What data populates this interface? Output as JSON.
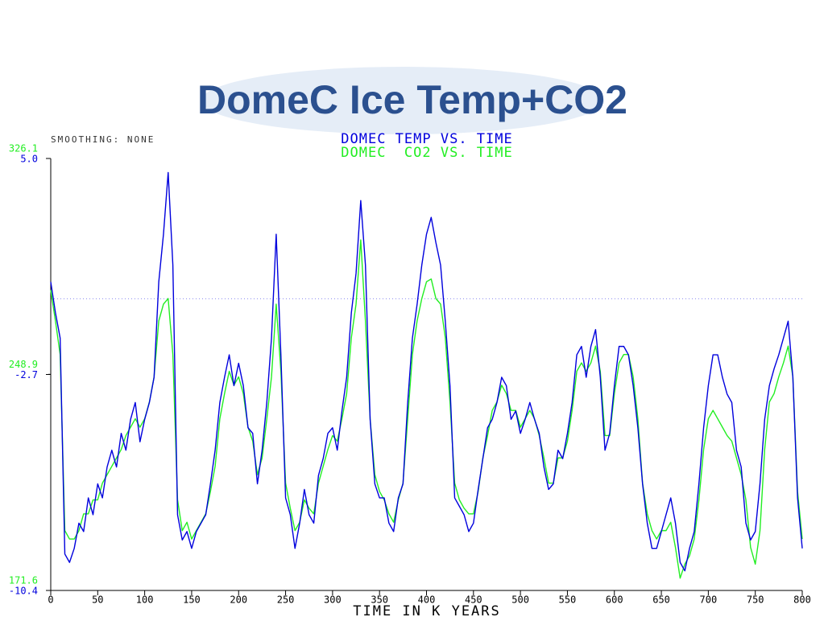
{
  "chart_data": {
    "type": "line",
    "title": "DomeC Ice Temp+CO2",
    "subtitle": "SMOOTHING: NONE",
    "x_label": "TIME IN K YEARS",
    "xlim": [
      0,
      800
    ],
    "xticks": [
      0,
      50,
      100,
      150,
      200,
      250,
      300,
      350,
      400,
      450,
      500,
      550,
      600,
      650,
      700,
      750,
      800
    ],
    "ylim": [
      -10.4,
      5.0
    ],
    "yticks": [
      -10.4,
      -2.7,
      {
        "value": 5.0,
        "label": "5.0"
      }
    ],
    "y2lim": [
      171.6,
      326.1
    ],
    "y2ticks": [
      171.6,
      248.9,
      326.1
    ],
    "hline": 0,
    "x": [
      0,
      5,
      10,
      15,
      20,
      25,
      30,
      35,
      40,
      45,
      50,
      55,
      60,
      65,
      70,
      75,
      80,
      85,
      90,
      95,
      100,
      105,
      110,
      115,
      120,
      125,
      130,
      135,
      140,
      145,
      150,
      155,
      160,
      165,
      170,
      175,
      180,
      185,
      190,
      195,
      200,
      205,
      210,
      215,
      220,
      225,
      230,
      235,
      240,
      245,
      250,
      255,
      260,
      265,
      270,
      275,
      280,
      285,
      290,
      295,
      300,
      305,
      310,
      315,
      320,
      325,
      330,
      335,
      340,
      345,
      350,
      355,
      360,
      365,
      370,
      375,
      380,
      385,
      390,
      395,
      400,
      405,
      410,
      415,
      420,
      425,
      430,
      435,
      440,
      445,
      450,
      455,
      460,
      465,
      470,
      475,
      480,
      485,
      490,
      495,
      500,
      505,
      510,
      515,
      520,
      525,
      530,
      535,
      540,
      545,
      550,
      555,
      560,
      565,
      570,
      575,
      580,
      585,
      590,
      595,
      600,
      605,
      610,
      615,
      620,
      625,
      630,
      635,
      640,
      645,
      650,
      655,
      660,
      665,
      670,
      675,
      680,
      685,
      690,
      695,
      700,
      705,
      710,
      715,
      720,
      725,
      730,
      735,
      740,
      745,
      750,
      755,
      760,
      765,
      770,
      775,
      780,
      785,
      790,
      795,
      800
    ],
    "series": [
      {
        "name": "DOMEC TEMP VS. TIME",
        "color": "#0000dd",
        "axis": "y",
        "values": [
          0.6,
          -0.5,
          -1.4,
          -9.1,
          -9.4,
          -8.9,
          -8.0,
          -8.3,
          -7.1,
          -7.7,
          -6.6,
          -7.1,
          -6.0,
          -5.4,
          -6.0,
          -4.8,
          -5.4,
          -4.3,
          -3.7,
          -5.1,
          -4.3,
          -3.7,
          -2.8,
          0.6,
          2.3,
          4.5,
          1.2,
          -7.7,
          -8.6,
          -8.3,
          -8.9,
          -8.3,
          -8.0,
          -7.7,
          -6.6,
          -5.4,
          -3.7,
          -2.8,
          -2.0,
          -3.1,
          -2.3,
          -3.1,
          -4.6,
          -4.8,
          -6.6,
          -5.4,
          -3.7,
          -1.4,
          2.3,
          -2.0,
          -7.1,
          -7.7,
          -8.9,
          -8.0,
          -6.8,
          -7.7,
          -8.0,
          -6.3,
          -5.7,
          -4.8,
          -4.6,
          -5.4,
          -4.0,
          -2.8,
          -0.5,
          0.9,
          3.5,
          1.2,
          -4.3,
          -6.6,
          -7.1,
          -7.1,
          -8.0,
          -8.3,
          -7.1,
          -6.6,
          -3.7,
          -1.4,
          -0.2,
          1.2,
          2.3,
          2.9,
          2.0,
          1.2,
          -0.8,
          -3.1,
          -7.1,
          -7.4,
          -7.7,
          -8.3,
          -8.0,
          -6.8,
          -5.7,
          -4.6,
          -4.3,
          -3.7,
          -2.8,
          -3.1,
          -4.3,
          -4.0,
          -4.8,
          -4.3,
          -3.7,
          -4.3,
          -4.8,
          -6.0,
          -6.8,
          -6.6,
          -5.4,
          -5.7,
          -4.8,
          -3.7,
          -2.0,
          -1.7,
          -2.8,
          -1.7,
          -1.1,
          -2.8,
          -5.4,
          -4.8,
          -3.1,
          -1.7,
          -1.7,
          -2.0,
          -3.1,
          -4.6,
          -6.6,
          -8.0,
          -8.9,
          -8.9,
          -8.3,
          -7.7,
          -7.1,
          -8.0,
          -9.4,
          -9.7,
          -8.9,
          -8.3,
          -6.6,
          -4.6,
          -3.1,
          -2.0,
          -2.0,
          -2.8,
          -3.4,
          -3.7,
          -5.4,
          -6.0,
          -8.0,
          -8.6,
          -8.3,
          -6.6,
          -4.3,
          -3.1,
          -2.5,
          -2.0,
          -1.4,
          -0.8,
          -2.8,
          -7.1,
          -8.9
        ]
      },
      {
        "name": "DOMEC  CO2 VS. TIME",
        "color": "#22ee22",
        "axis": "y2",
        "values": [
          279,
          268,
          256,
          193,
          190,
          190,
          193,
          199,
          199,
          204,
          204,
          210,
          213,
          216,
          219,
          222,
          227,
          230,
          233,
          230,
          233,
          239,
          248,
          268,
          274,
          276,
          256,
          204,
          193,
          196,
          190,
          193,
          196,
          199,
          207,
          216,
          233,
          242,
          250,
          245,
          248,
          242,
          230,
          225,
          213,
          219,
          233,
          248,
          274,
          250,
          210,
          201,
          193,
          196,
          204,
          201,
          199,
          210,
          216,
          222,
          227,
          225,
          233,
          242,
          262,
          274,
          297,
          268,
          233,
          213,
          207,
          204,
          199,
          196,
          204,
          210,
          233,
          256,
          268,
          276,
          282,
          283,
          276,
          274,
          262,
          239,
          210,
          204,
          201,
          199,
          199,
          207,
          219,
          227,
          236,
          239,
          245,
          242,
          236,
          236,
          230,
          233,
          236,
          233,
          227,
          219,
          210,
          210,
          219,
          219,
          225,
          236,
          250,
          253,
          250,
          253,
          259,
          250,
          227,
          227,
          242,
          253,
          256,
          256,
          248,
          233,
          210,
          199,
          193,
          190,
          193,
          193,
          196,
          187,
          176,
          181,
          184,
          190,
          204,
          222,
          233,
          236,
          233,
          230,
          227,
          225,
          219,
          213,
          204,
          187,
          181,
          193,
          222,
          239,
          242,
          248,
          253,
          259,
          248,
          207,
          190
        ]
      }
    ]
  }
}
